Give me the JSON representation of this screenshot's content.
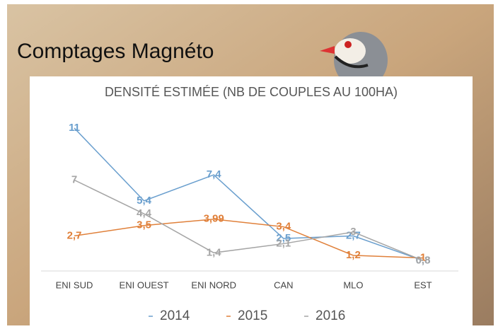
{
  "slide_title": "Comptages Magnéto",
  "chart_data": {
    "type": "line",
    "title": "DENSITÉ ESTIMÉE (NB DE COUPLES AU 100HA)",
    "categories": [
      "ENI SUD",
      "ENI OUEST",
      "ENI NORD",
      "CAN",
      "MLO",
      "EST"
    ],
    "series": [
      {
        "name": "2014",
        "color": "#6a9fce",
        "values": [
          11,
          5.4,
          7.4,
          2.5,
          2.7,
          0.8
        ],
        "value_labels": [
          "11",
          "5,4",
          "7,4",
          "2,5",
          "2,7",
          "0,8"
        ]
      },
      {
        "name": "2015",
        "color": "#e0803a",
        "values": [
          2.7,
          3.5,
          3.99,
          3.4,
          1.2,
          1
        ],
        "value_labels": [
          "2,7",
          "3,5",
          "3,99",
          "3,4",
          "1,2",
          "1"
        ]
      },
      {
        "name": "2016",
        "color": "#a5a5a5",
        "values": [
          7,
          4.4,
          1.4,
          2.1,
          3,
          0.8
        ],
        "value_labels": [
          "7",
          "4,4",
          "1,4",
          "2,1",
          "3",
          "0,8"
        ]
      }
    ]
  }
}
